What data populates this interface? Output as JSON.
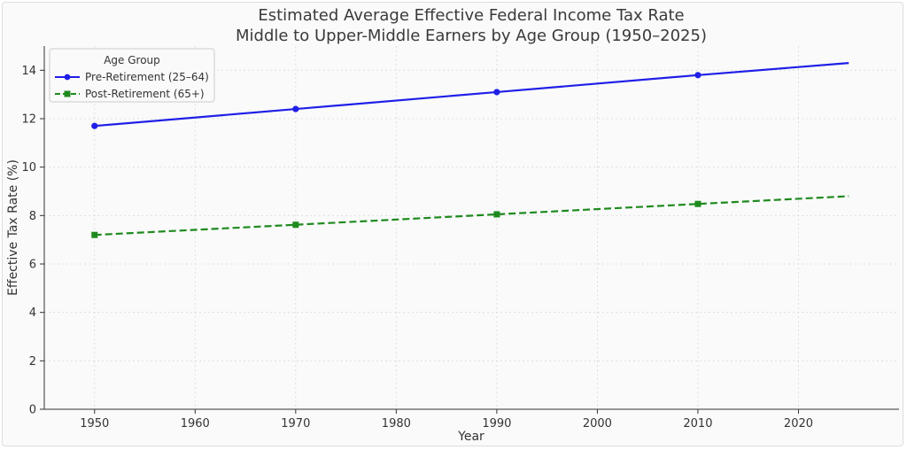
{
  "chart_data": {
    "type": "line",
    "title": "Estimated Average Effective Federal Income Tax Rate",
    "subtitle": "Middle to Upper-Middle Earners by Age Group (1950–2025)",
    "xlabel": "Year",
    "ylabel": "Effective Tax Rate (%)",
    "xlim": [
      1945,
      2030
    ],
    "ylim": [
      0,
      15
    ],
    "xticks": [
      1950,
      1960,
      1970,
      1980,
      1990,
      2000,
      2010,
      2020
    ],
    "yticks": [
      0,
      2,
      4,
      6,
      8,
      10,
      12,
      14
    ],
    "grid": true,
    "legend": {
      "title": "Age Group",
      "placement": "top-left"
    },
    "series": [
      {
        "name": "Pre-Retirement (25–64)",
        "color": "#1f1fe8",
        "linestyle": "solid",
        "marker": "circle",
        "x": [
          1950,
          1970,
          1990,
          2010,
          2025
        ],
        "y": [
          11.7,
          12.4,
          13.1,
          13.8,
          14.3
        ],
        "marker_x": [
          1950,
          1970,
          1990,
          2010
        ]
      },
      {
        "name": "Post-Retirement (65+)",
        "color": "#1e8a1e",
        "linestyle": "dashed",
        "marker": "square",
        "x": [
          1950,
          1970,
          1990,
          2010,
          2025
        ],
        "y": [
          7.2,
          7.62,
          8.05,
          8.48,
          8.8
        ],
        "marker_x": [
          1950,
          1970,
          1990,
          2010
        ]
      }
    ]
  }
}
